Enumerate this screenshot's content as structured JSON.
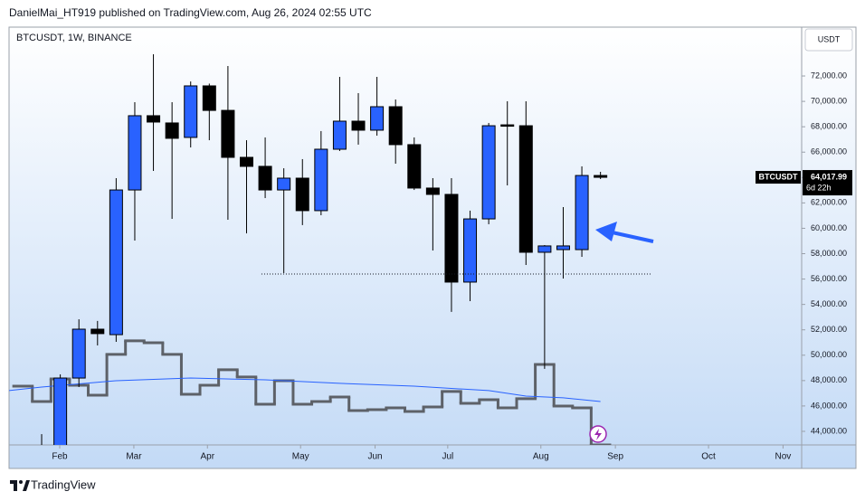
{
  "header": {
    "text": "DanielMai_HT919 published on TradingView.com, Aug 26, 2024 02:55 UTC"
  },
  "footer": {
    "brand": "TradingView"
  },
  "chart_data": {
    "type": "candlestick",
    "title": "BTCUSDT, 1W, BINANCE",
    "currency": "USDT",
    "x": [
      0,
      1,
      2,
      3,
      4,
      5,
      6,
      7,
      8,
      9,
      10,
      11,
      12,
      13,
      14,
      15,
      16,
      17,
      18,
      19,
      20,
      21,
      22,
      23,
      24,
      25,
      26,
      27,
      28,
      29,
      30
    ],
    "open": [
      42600,
      42300,
      48200,
      52050,
      51620,
      63020,
      68870,
      68300,
      67160,
      71220,
      69290,
      65590,
      64880,
      63020,
      63950,
      61390,
      66230,
      68440,
      67730,
      69580,
      66590,
      63170,
      62670,
      55760,
      60740,
      68150,
      68080,
      58110,
      58320,
      58320,
      64160
    ],
    "high": [
      43780,
      48490,
      52830,
      52700,
      63950,
      69940,
      73710,
      69940,
      71570,
      71400,
      72790,
      66940,
      67160,
      64730,
      65450,
      67660,
      71930,
      70650,
      71930,
      70150,
      67160,
      63950,
      63950,
      61390,
      68300,
      70010,
      70010,
      58680,
      61670,
      64880,
      64450
    ],
    "low": [
      41500,
      42000,
      47490,
      50770,
      51050,
      59030,
      64520,
      60740,
      66370,
      66940,
      60670,
      59600,
      62380,
      56470,
      60250,
      61030,
      66090,
      66590,
      67300,
      65090,
      63020,
      58250,
      53410,
      54260,
      60320,
      63380,
      57110,
      48920,
      56040,
      57750,
      63880
    ],
    "close": [
      42300,
      48200,
      52050,
      51700,
      63020,
      68870,
      68370,
      67090,
      71220,
      69290,
      65590,
      64880,
      63020,
      63950,
      61390,
      66230,
      68440,
      67730,
      69580,
      66590,
      63170,
      62670,
      55760,
      60740,
      68080,
      68080,
      58110,
      58610,
      58610,
      64160,
      64017.99
    ],
    "up_color": "#2962ff",
    "down_color": "#000000",
    "wick_color": "#000000",
    "xlim": [
      -1.75,
      40.8
    ],
    "xticks": [
      {
        "value": 0.97,
        "label": "Feb"
      },
      {
        "value": 4.95,
        "label": "Mar"
      },
      {
        "value": 8.9,
        "label": "Apr"
      },
      {
        "value": 13.9,
        "label": "May"
      },
      {
        "value": 17.9,
        "label": "Jun"
      },
      {
        "value": 21.8,
        "label": "Jul"
      },
      {
        "value": 26.8,
        "label": "Aug"
      },
      {
        "value": 30.8,
        "label": "Sep"
      },
      {
        "value": 35.8,
        "label": "Oct"
      },
      {
        "value": 39.8,
        "label": "Nov"
      }
    ],
    "ylim": [
      42930,
      75850
    ],
    "yticks": [
      {
        "value": 44000,
        "label": "44,000.00"
      },
      {
        "value": 46000,
        "label": "46,000.00"
      },
      {
        "value": 48000,
        "label": "48,000.00"
      },
      {
        "value": 50000,
        "label": "50,000.00"
      },
      {
        "value": 52000,
        "label": "52,000.00"
      },
      {
        "value": 54000,
        "label": "54,000.00"
      },
      {
        "value": 56000,
        "label": "56,000.00"
      },
      {
        "value": 58000,
        "label": "58,000.00"
      },
      {
        "value": 60000,
        "label": "60,000.00"
      },
      {
        "value": 62000,
        "label": "62,000.00"
      },
      {
        "value": 64000,
        "label": "64,000.00"
      },
      {
        "value": 66000,
        "label": "66,000.00"
      },
      {
        "value": 68000,
        "label": "68,000.00"
      },
      {
        "value": 70000,
        "label": "70,000.00"
      },
      {
        "value": 72000,
        "label": "72,000.00"
      }
    ],
    "overlays": [
      {
        "type": "step",
        "color": "#5d6168",
        "x": [
          -1,
          0,
          1,
          2,
          3,
          4,
          5,
          6,
          7,
          8,
          9,
          10,
          11,
          12,
          13,
          14,
          15,
          16,
          17,
          18,
          19,
          20,
          21,
          22,
          23,
          24,
          25,
          26,
          27,
          28,
          29,
          30
        ],
        "values": [
          47560,
          46350,
          48130,
          47630,
          46850,
          50060,
          51130,
          50980,
          50060,
          46920,
          47630,
          48850,
          48280,
          46140,
          47990,
          46140,
          46350,
          46710,
          45640,
          45710,
          45850,
          45570,
          45920,
          47140,
          46210,
          46490,
          45850,
          46570,
          49270,
          45990,
          45850,
          42930
        ]
      },
      {
        "type": "line",
        "color": "#2962ff",
        "x": [
          -1.75,
          0,
          4,
          8,
          12,
          16,
          20,
          24,
          26,
          28,
          30
        ],
        "values": [
          47210,
          47490,
          47990,
          48200,
          48060,
          47780,
          47560,
          47210,
          46780,
          46640,
          46350
        ]
      }
    ],
    "level": {
      "value": 56400,
      "x": [
        11.8,
        32.7
      ]
    },
    "last_price": {
      "symbol": "BTCUSDT",
      "value": 64017.99,
      "label": "64,017.99",
      "countdown": "6d 22h"
    }
  }
}
